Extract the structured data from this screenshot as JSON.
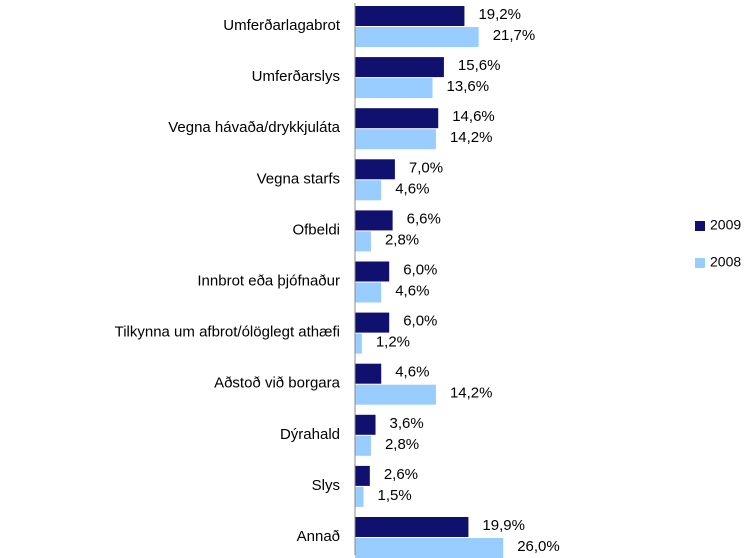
{
  "chart_data": {
    "type": "barh",
    "categories": [
      "Umferðarlagabrot",
      "Umferðarslys",
      "Vegna hávaða/drykkjuláta",
      "Vegna starfs",
      "Ofbeldi",
      "Innbrot eða þjófnaður",
      "Tilkynna um afbrot/ólöglegt athæfi",
      "Aðstoð við borgara",
      "Dýrahald",
      "Slys",
      "Annað"
    ],
    "series": [
      {
        "name": "2009",
        "color": "#10106e",
        "values": [
          19.2,
          15.6,
          14.6,
          7.0,
          6.6,
          6.0,
          6.0,
          4.6,
          3.6,
          2.6,
          19.9
        ],
        "value_labels": [
          "19,2%",
          "15,6%",
          "14,6%",
          "7,0%",
          "6,6%",
          "6,0%",
          "6,0%",
          "4,6%",
          "3,6%",
          "2,6%",
          "19,9%"
        ]
      },
      {
        "name": "2008",
        "color": "#99ccff",
        "values": [
          21.7,
          13.6,
          14.2,
          4.6,
          2.8,
          4.6,
          1.2,
          14.2,
          2.8,
          1.5,
          26.0
        ],
        "value_labels": [
          "21,7%",
          "13,6%",
          "14,2%",
          "4,6%",
          "2,8%",
          "4,6%",
          "1,2%",
          "14,2%",
          "2,8%",
          "1,5%",
          "26,0%"
        ]
      }
    ],
    "legend": "right"
  }
}
